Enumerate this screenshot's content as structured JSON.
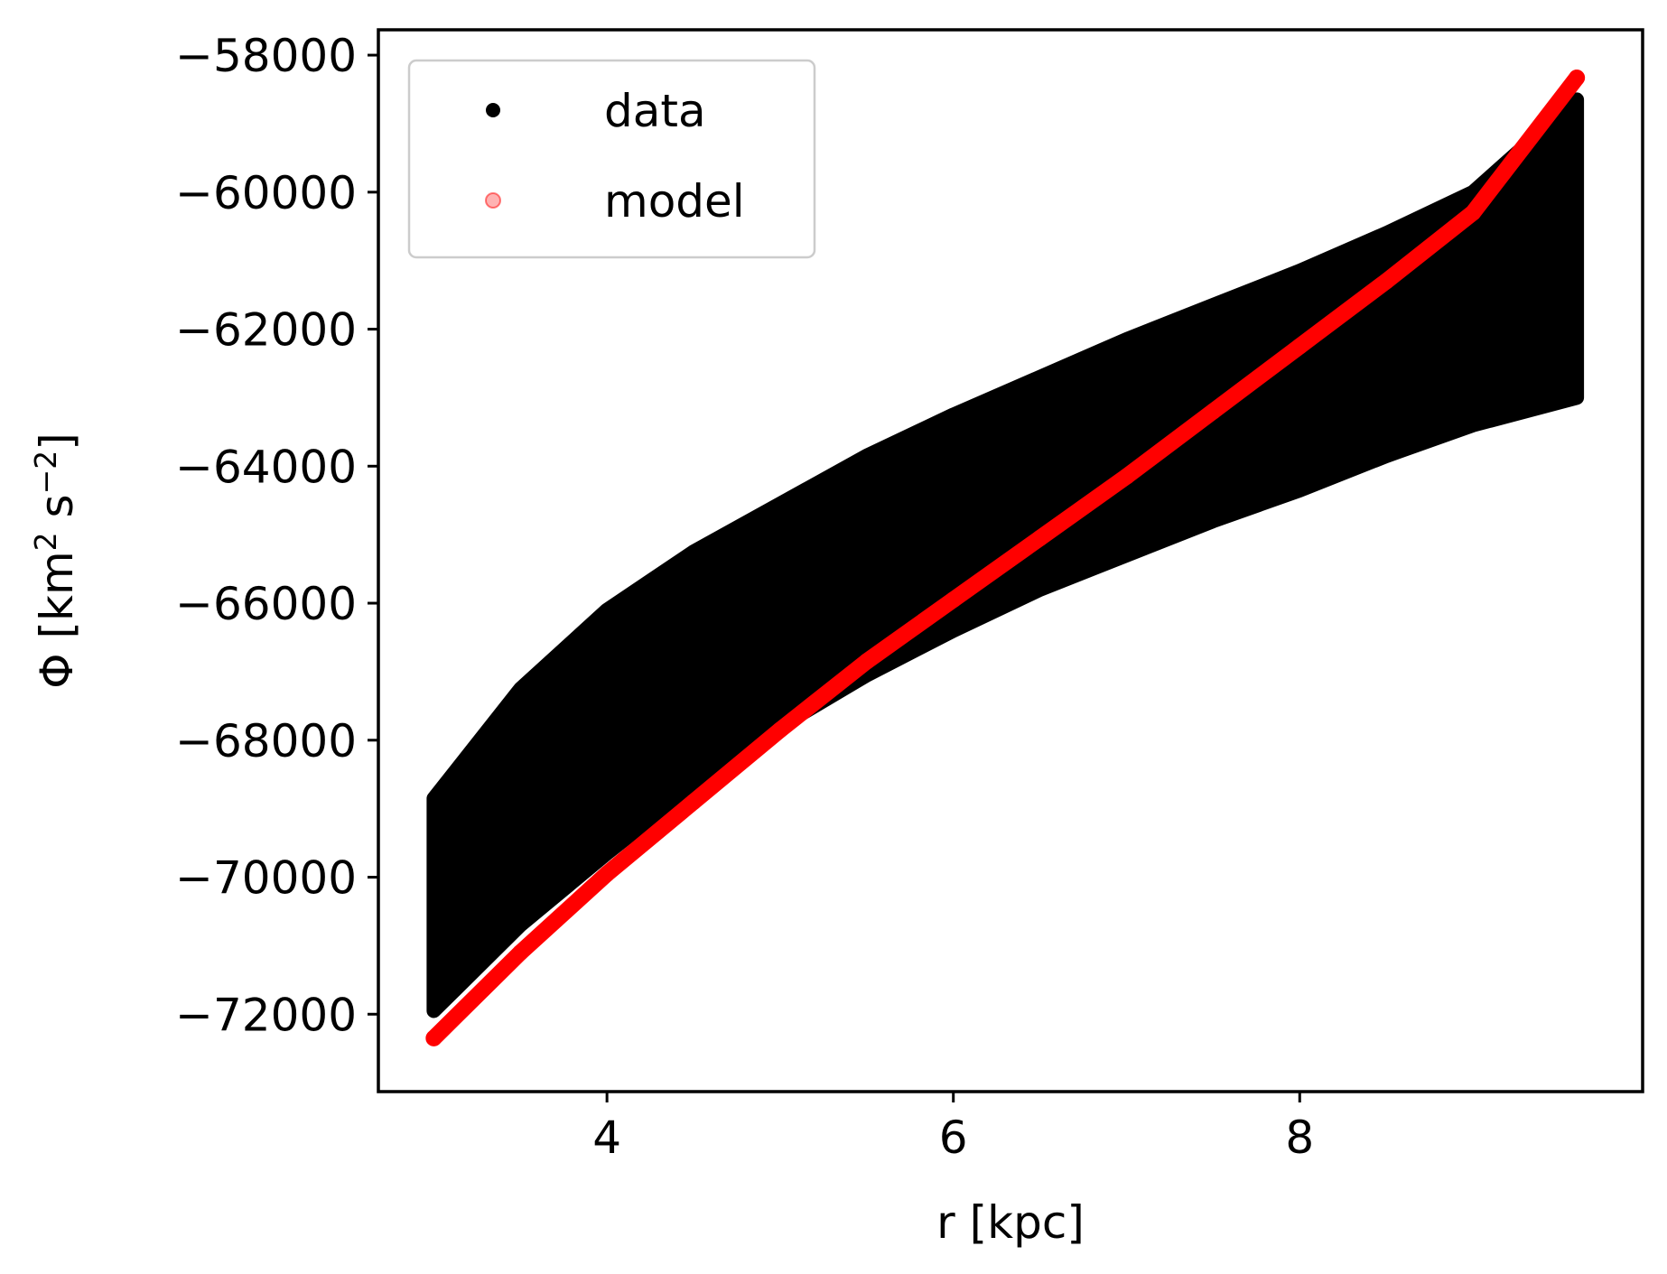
{
  "chart_data": {
    "type": "scatter",
    "xlabel": "r [kpc]",
    "ylabel": {
      "base": "Φ [km",
      "sup1": "2",
      "mid": " s",
      "sup2": "−2",
      "end": "]"
    },
    "xlim": [
      2.68,
      9.98
    ],
    "ylim": [
      -73130,
      -57630
    ],
    "x_ticks": [
      4,
      6,
      8
    ],
    "x_tick_labels": [
      "4",
      "6",
      "8"
    ],
    "y_ticks": [
      -72000,
      -70000,
      -68000,
      -66000,
      -64000,
      -62000,
      -60000,
      -58000
    ],
    "y_tick_labels": [
      "−72000",
      "−70000",
      "−68000",
      "−66000",
      "−64000",
      "−62000",
      "−60000",
      "−58000"
    ],
    "grid": false,
    "legend_position": "top-left",
    "series": [
      {
        "name": "data",
        "color": "#000000",
        "marker": "dot",
        "upper_envelope": [
          [
            3.0,
            -68850
          ],
          [
            3.5,
            -67250
          ],
          [
            4.0,
            -66100
          ],
          [
            4.5,
            -65250
          ],
          [
            5.0,
            -64550
          ],
          [
            5.5,
            -63850
          ],
          [
            6.0,
            -63250
          ],
          [
            6.5,
            -62700
          ],
          [
            7.0,
            -62150
          ],
          [
            7.5,
            -61650
          ],
          [
            8.0,
            -61150
          ],
          [
            8.5,
            -60600
          ],
          [
            9.0,
            -60000
          ],
          [
            9.6,
            -58650
          ]
        ],
        "lower_envelope": [
          [
            3.0,
            -71950
          ],
          [
            3.5,
            -70700
          ],
          [
            4.0,
            -69650
          ],
          [
            4.5,
            -68650
          ],
          [
            5.0,
            -67800
          ],
          [
            5.5,
            -67050
          ],
          [
            6.0,
            -66400
          ],
          [
            6.5,
            -65800
          ],
          [
            7.0,
            -65300
          ],
          [
            7.5,
            -64800
          ],
          [
            8.0,
            -64350
          ],
          [
            8.5,
            -63850
          ],
          [
            9.0,
            -63400
          ],
          [
            9.6,
            -63000
          ]
        ]
      },
      {
        "name": "model",
        "color": "#ff0000",
        "marker": "dot",
        "points": [
          [
            3.0,
            -72350
          ],
          [
            3.5,
            -71100
          ],
          [
            4.0,
            -69950
          ],
          [
            4.5,
            -68900
          ],
          [
            5.0,
            -67850
          ],
          [
            5.5,
            -66850
          ],
          [
            6.0,
            -65950
          ],
          [
            6.5,
            -65050
          ],
          [
            7.0,
            -64150
          ],
          [
            7.5,
            -63200
          ],
          [
            8.0,
            -62250
          ],
          [
            8.5,
            -61300
          ],
          [
            9.0,
            -60300
          ],
          [
            9.6,
            -58330
          ]
        ]
      }
    ]
  }
}
